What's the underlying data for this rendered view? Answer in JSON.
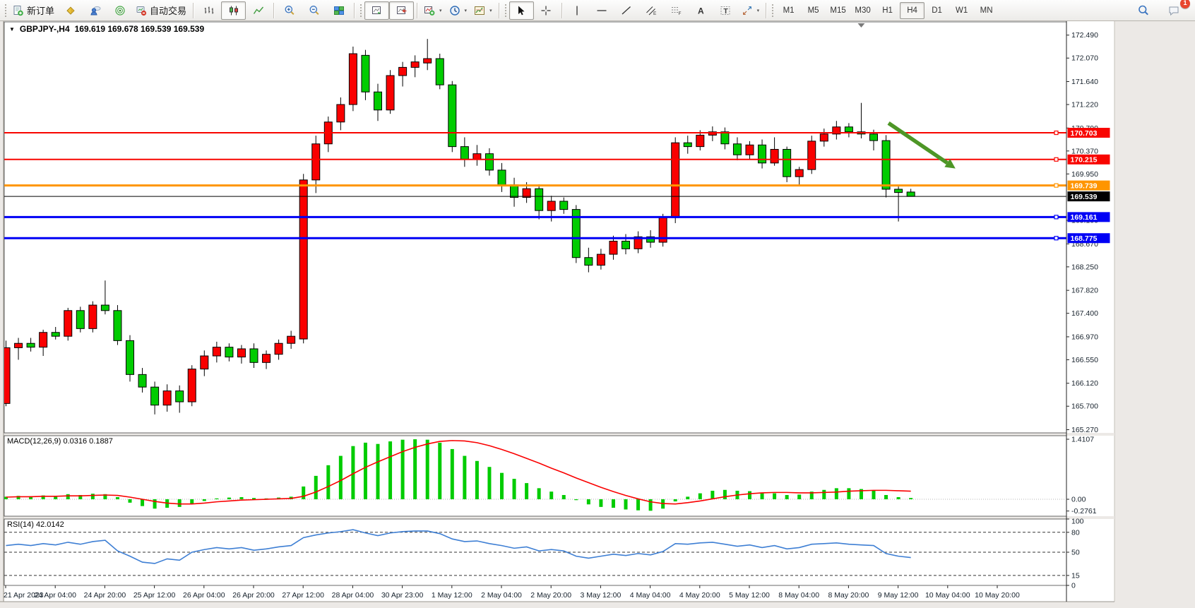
{
  "toolbar": {
    "groups": [
      {
        "buttons": [
          {
            "name": "new-order",
            "icon": "neworder",
            "label": "新订单"
          },
          {
            "name": "metaeditor",
            "icon": "cube"
          },
          {
            "name": "mql5-community",
            "icon": "clouduser"
          },
          {
            "name": "signals",
            "icon": "radar"
          },
          {
            "name": "autotrade",
            "icon": "autotrade",
            "label": "自动交易"
          }
        ]
      },
      {
        "buttons": [
          {
            "name": "bar-chart",
            "icon": "bars"
          },
          {
            "name": "candlestick-chart",
            "icon": "candles",
            "active": true
          },
          {
            "name": "line-chart",
            "icon": "linechart"
          }
        ]
      },
      {
        "buttons": [
          {
            "name": "zoom-in",
            "icon": "zoomin"
          },
          {
            "name": "zoom-out",
            "icon": "zoomout"
          },
          {
            "name": "tile-windows",
            "icon": "tile"
          }
        ]
      },
      {
        "buttons": [
          {
            "name": "auto-scroll",
            "icon": "autoscroll",
            "active": true
          },
          {
            "name": "chart-shift",
            "icon": "shift",
            "active": true
          }
        ]
      },
      {
        "buttons": [
          {
            "name": "indicators",
            "icon": "indicator",
            "dropdown": true
          },
          {
            "name": "periods",
            "icon": "clock",
            "dropdown": true
          },
          {
            "name": "templates",
            "icon": "template",
            "dropdown": true
          }
        ]
      },
      {
        "buttons": [
          {
            "name": "cursor",
            "icon": "cursor",
            "active": true
          },
          {
            "name": "crosshair",
            "icon": "crosshair"
          }
        ]
      },
      {
        "buttons": [
          {
            "name": "vertical-line",
            "icon": "vline"
          },
          {
            "name": "horizontal-line",
            "icon": "hline"
          },
          {
            "name": "trendline",
            "icon": "trend"
          },
          {
            "name": "equidistant-channel",
            "icon": "channel"
          },
          {
            "name": "fibonacci",
            "icon": "fibo"
          },
          {
            "name": "text",
            "icon": "textA"
          },
          {
            "name": "text-label",
            "icon": "labelT"
          },
          {
            "name": "arrows",
            "icon": "arrows",
            "dropdown": true
          }
        ]
      }
    ],
    "timeframes": [
      "M1",
      "M5",
      "M15",
      "M30",
      "H1",
      "H4",
      "D1",
      "W1",
      "MN"
    ],
    "active_timeframe": "H4",
    "right": [
      {
        "name": "search",
        "icon": "search"
      },
      {
        "name": "chat",
        "icon": "chat",
        "badge": "1"
      }
    ]
  },
  "chart": {
    "title_symbol": "GBPJPY-,H4",
    "title_ohlc": "169.619 169.678 169.539 169.539",
    "macd_label": "MACD(12,26,9) 0.0316 0.1887",
    "rsi_label": "RSI(14) 42.0142"
  },
  "chart_data": {
    "type": "candlestick",
    "symbol": "GBPJPY-",
    "timeframe": "H4",
    "last_bar": {
      "open": 169.619,
      "high": 169.678,
      "low": 169.539,
      "close": 169.539
    },
    "colors": {
      "bull": "#FA0000",
      "bear": "#00CC00",
      "wick": "#000000",
      "macd_hist": "#00CC00",
      "macd_signal": "#FA0000",
      "rsi_line": "#3E7FD4",
      "arrow": "#4D9626",
      "axis_text": "#15202b",
      "line_red": "#F80500",
      "line_orange": "#FF9500",
      "line_blue": "#0000F5",
      "line_black": "#000000"
    },
    "price_axis": {
      "ticks": [
        "172.490",
        "172.070",
        "171.640",
        "171.220",
        "170.790",
        "170.370",
        "169.950",
        "169.100",
        "168.670",
        "168.250",
        "167.820",
        "167.400",
        "166.970",
        "166.550",
        "166.120",
        "165.700",
        "165.270"
      ]
    },
    "hlines": [
      {
        "price": 170.703,
        "label": "170.703",
        "color": "#F80500",
        "width": 2,
        "handle": true
      },
      {
        "price": 170.215,
        "label": "170.215",
        "color": "#F80500",
        "width": 2,
        "handle": true
      },
      {
        "price": 169.739,
        "label": "169.739",
        "color": "#FF9500",
        "width": 3,
        "handle": true
      },
      {
        "price": 169.539,
        "label": "169.539",
        "color": "#000000",
        "width": 1,
        "handle": false
      },
      {
        "price": 169.161,
        "label": "169.161",
        "color": "#0000F5",
        "width": 3,
        "handle": true
      },
      {
        "price": 168.775,
        "label": "168.775",
        "color": "#0000F5",
        "width": 3,
        "handle": true
      }
    ],
    "time_axis": {
      "labels": [
        "21 Apr 2023",
        "24 Apr 04:00",
        "24 Apr 20:00",
        "25 Apr 12:00",
        "26 Apr 04:00",
        "26 Apr 20:00",
        "27 Apr 12:00",
        "28 Apr 04:00",
        "30 Apr 23:00",
        "1 May 12:00",
        "2 May 04:00",
        "2 May 20:00",
        "3 May 12:00",
        "4 May 04:00",
        "4 May 20:00",
        "5 May 12:00",
        "8 May 04:00",
        "8 May 20:00",
        "9 May 12:00",
        "10 May 04:00",
        "10 May 20:00"
      ],
      "bars_per_label": 4
    },
    "candles": [
      [
        165.75,
        166.9,
        165.7,
        166.77
      ],
      [
        166.77,
        166.95,
        166.55,
        166.85
      ],
      [
        166.85,
        166.95,
        166.7,
        166.78
      ],
      [
        166.78,
        167.1,
        166.62,
        167.05
      ],
      [
        167.05,
        167.15,
        166.92,
        166.98
      ],
      [
        166.98,
        167.5,
        166.9,
        167.45
      ],
      [
        167.45,
        167.52,
        167.05,
        167.12
      ],
      [
        167.12,
        167.62,
        167.05,
        167.55
      ],
      [
        167.55,
        168.0,
        167.38,
        167.45
      ],
      [
        167.45,
        167.55,
        166.82,
        166.9
      ],
      [
        166.9,
        167.0,
        166.15,
        166.28
      ],
      [
        166.28,
        166.4,
        165.95,
        166.05
      ],
      [
        166.05,
        166.15,
        165.55,
        165.72
      ],
      [
        165.72,
        166.1,
        165.6,
        165.98
      ],
      [
        165.98,
        166.08,
        165.58,
        165.78
      ],
      [
        165.78,
        166.45,
        165.7,
        166.38
      ],
      [
        166.38,
        166.72,
        166.25,
        166.62
      ],
      [
        166.62,
        166.88,
        166.5,
        166.78
      ],
      [
        166.78,
        166.85,
        166.52,
        166.6
      ],
      [
        166.6,
        166.82,
        166.48,
        166.75
      ],
      [
        166.75,
        166.85,
        166.4,
        166.5
      ],
      [
        166.5,
        166.72,
        166.38,
        166.65
      ],
      [
        166.65,
        166.92,
        166.55,
        166.85
      ],
      [
        166.85,
        167.08,
        166.75,
        166.98
      ],
      [
        166.93,
        169.95,
        166.85,
        169.84
      ],
      [
        169.84,
        170.65,
        169.6,
        170.5
      ],
      [
        170.5,
        171.0,
        170.35,
        170.9
      ],
      [
        170.9,
        171.35,
        170.75,
        171.22
      ],
      [
        171.22,
        172.28,
        171.1,
        172.15
      ],
      [
        172.12,
        172.22,
        171.3,
        171.45
      ],
      [
        171.45,
        171.6,
        170.92,
        171.12
      ],
      [
        171.12,
        171.85,
        171.05,
        171.75
      ],
      [
        171.75,
        172.0,
        171.55,
        171.9
      ],
      [
        171.9,
        172.12,
        171.72,
        172.0
      ],
      [
        171.98,
        172.42,
        171.85,
        172.06
      ],
      [
        172.06,
        172.15,
        171.5,
        171.58
      ],
      [
        171.58,
        171.65,
        170.35,
        170.45
      ],
      [
        170.45,
        170.62,
        170.08,
        170.22
      ],
      [
        170.22,
        170.48,
        170.1,
        170.32
      ],
      [
        170.32,
        170.42,
        169.92,
        170.02
      ],
      [
        170.02,
        170.15,
        169.62,
        169.75
      ],
      [
        169.75,
        169.88,
        169.35,
        169.52
      ],
      [
        169.52,
        169.8,
        169.42,
        169.68
      ],
      [
        169.68,
        169.76,
        169.12,
        169.28
      ],
      [
        169.28,
        169.55,
        169.08,
        169.45
      ],
      [
        169.45,
        169.52,
        169.22,
        169.3
      ],
      [
        169.3,
        169.38,
        168.32,
        168.42
      ],
      [
        168.42,
        168.6,
        168.15,
        168.28
      ],
      [
        168.28,
        168.58,
        168.2,
        168.48
      ],
      [
        168.48,
        168.82,
        168.38,
        168.72
      ],
      [
        168.72,
        168.85,
        168.48,
        168.58
      ],
      [
        168.58,
        168.9,
        168.5,
        168.8
      ],
      [
        168.8,
        168.92,
        168.6,
        168.7
      ],
      [
        168.7,
        169.22,
        168.62,
        169.15
      ],
      [
        169.15,
        170.62,
        169.05,
        170.52
      ],
      [
        170.52,
        170.65,
        170.32,
        170.45
      ],
      [
        170.45,
        170.75,
        170.38,
        170.66
      ],
      [
        170.66,
        170.82,
        170.55,
        170.72
      ],
      [
        170.72,
        170.8,
        170.4,
        170.5
      ],
      [
        170.5,
        170.62,
        170.2,
        170.3
      ],
      [
        170.3,
        170.55,
        170.22,
        170.48
      ],
      [
        170.48,
        170.58,
        170.05,
        170.15
      ],
      [
        170.15,
        170.62,
        170.1,
        170.4
      ],
      [
        170.4,
        170.45,
        169.8,
        169.9
      ],
      [
        169.9,
        170.08,
        169.75,
        170.03
      ],
      [
        170.03,
        170.65,
        169.95,
        170.55
      ],
      [
        170.55,
        170.78,
        170.45,
        170.68
      ],
      [
        170.68,
        170.92,
        170.58,
        170.81
      ],
      [
        170.81,
        170.88,
        170.62,
        170.72
      ],
      [
        170.72,
        171.25,
        170.6,
        170.68
      ],
      [
        170.68,
        170.76,
        170.38,
        170.56
      ],
      [
        170.56,
        170.66,
        169.52,
        169.67
      ],
      [
        169.67,
        169.72,
        169.08,
        169.61
      ],
      [
        169.619,
        169.678,
        169.539,
        169.539
      ]
    ],
    "annotations": {
      "arrow": {
        "x1_bar": 71.2,
        "y1_price": 170.88,
        "x2_bar": 76.6,
        "y2_price": 170.05
      },
      "shift_marker_bar": 69
    },
    "macd": {
      "params": "12,26,9",
      "value": 0.0316,
      "signal_value": 0.1887,
      "ticks": [
        {
          "v": 1.4107,
          "label": "1.4107"
        },
        {
          "v": 0,
          "label": "0.00"
        },
        {
          "v": -0.2761,
          "label": "-0.2761"
        }
      ],
      "hist": [
        0.06,
        0.08,
        0.07,
        0.09,
        0.08,
        0.12,
        0.1,
        0.13,
        0.12,
        0.05,
        -0.08,
        -0.16,
        -0.22,
        -0.2,
        -0.18,
        -0.1,
        -0.04,
        0.02,
        0.04,
        0.05,
        0.03,
        0.02,
        0.04,
        0.06,
        0.3,
        0.55,
        0.8,
        1.02,
        1.25,
        1.33,
        1.3,
        1.36,
        1.4,
        1.41,
        1.4,
        1.33,
        1.18,
        1.02,
        0.9,
        0.76,
        0.62,
        0.48,
        0.38,
        0.26,
        0.18,
        0.1,
        -0.02,
        -0.12,
        -0.18,
        -0.2,
        -0.24,
        -0.26,
        -0.27,
        -0.22,
        -0.05,
        0.06,
        0.14,
        0.2,
        0.22,
        0.2,
        0.19,
        0.14,
        0.14,
        0.1,
        0.11,
        0.18,
        0.22,
        0.26,
        0.26,
        0.24,
        0.2,
        0.1,
        0.05,
        0.03
      ],
      "signal": [
        0.05,
        0.06,
        0.06,
        0.07,
        0.07,
        0.08,
        0.08,
        0.09,
        0.1,
        0.09,
        0.05,
        0.0,
        -0.05,
        -0.09,
        -0.11,
        -0.11,
        -0.09,
        -0.06,
        -0.04,
        -0.02,
        -0.01,
        0.0,
        0.01,
        0.02,
        0.07,
        0.17,
        0.3,
        0.44,
        0.6,
        0.75,
        0.88,
        1.0,
        1.12,
        1.22,
        1.3,
        1.36,
        1.38,
        1.37,
        1.33,
        1.26,
        1.17,
        1.07,
        0.96,
        0.85,
        0.73,
        0.62,
        0.5,
        0.39,
        0.28,
        0.18,
        0.09,
        0.01,
        -0.06,
        -0.1,
        -0.11,
        -0.08,
        -0.04,
        0.01,
        0.06,
        0.1,
        0.13,
        0.15,
        0.16,
        0.16,
        0.15,
        0.15,
        0.16,
        0.17,
        0.19,
        0.2,
        0.21,
        0.21,
        0.2,
        0.19
      ]
    },
    "rsi": {
      "period": 14,
      "value": 42.0142,
      "levels": [
        80,
        50,
        15
      ],
      "ticks": [
        {
          "v": 100,
          "label": "100"
        },
        {
          "v": 80,
          "label": "80"
        },
        {
          "v": 50,
          "label": "50"
        },
        {
          "v": 15,
          "label": "15"
        },
        {
          "v": 0,
          "label": "0"
        }
      ],
      "values": [
        60,
        62,
        60,
        63,
        61,
        65,
        62,
        66,
        68,
        52,
        44,
        35,
        33,
        40,
        38,
        50,
        54,
        57,
        55,
        57,
        53,
        55,
        58,
        60,
        72,
        76,
        79,
        81,
        84,
        79,
        75,
        79,
        81,
        82,
        82,
        78,
        70,
        66,
        67,
        63,
        60,
        56,
        58,
        52,
        54,
        52,
        44,
        41,
        44,
        47,
        45,
        48,
        46,
        51,
        63,
        62,
        64,
        65,
        62,
        59,
        61,
        57,
        60,
        55,
        57,
        62,
        63,
        64,
        62,
        61,
        60,
        48,
        44,
        42
      ]
    }
  }
}
